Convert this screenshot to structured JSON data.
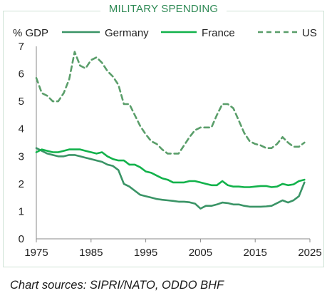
{
  "chart_data": {
    "type": "line",
    "title": "MILITARY SPENDING",
    "ylabel": "% GDP",
    "xlabel": "",
    "xlim": [
      1975,
      2025
    ],
    "ylim": [
      0,
      7
    ],
    "xticks": [
      "1975",
      "1985",
      "1995",
      "2005",
      "2015",
      "2025"
    ],
    "yticks": [
      "0",
      "1",
      "2",
      "3",
      "4",
      "5",
      "6",
      "7"
    ],
    "legend_position": "top",
    "grid": false,
    "series": [
      {
        "name": "Germany",
        "color": "#3a9466",
        "style": "solid",
        "x": [
          1975,
          1976,
          1977,
          1978,
          1979,
          1980,
          1981,
          1982,
          1983,
          1984,
          1985,
          1986,
          1987,
          1988,
          1989,
          1990,
          1991,
          1992,
          1993,
          1994,
          1995,
          1996,
          1997,
          1998,
          1999,
          2000,
          2001,
          2002,
          2003,
          2004,
          2005,
          2006,
          2007,
          2008,
          2009,
          2010,
          2011,
          2012,
          2013,
          2014,
          2015,
          2016,
          2017,
          2018,
          2019,
          2020,
          2021,
          2022,
          2023,
          2024
        ],
        "values": [
          3.3,
          3.2,
          3.1,
          3.05,
          3.0,
          3.0,
          3.05,
          3.05,
          3.0,
          2.95,
          2.9,
          2.85,
          2.8,
          2.7,
          2.65,
          2.5,
          2.0,
          1.9,
          1.75,
          1.6,
          1.55,
          1.5,
          1.45,
          1.42,
          1.4,
          1.38,
          1.35,
          1.35,
          1.33,
          1.28,
          1.1,
          1.2,
          1.2,
          1.25,
          1.32,
          1.3,
          1.25,
          1.25,
          1.2,
          1.17,
          1.17,
          1.17,
          1.18,
          1.2,
          1.3,
          1.4,
          1.32,
          1.4,
          1.55,
          2.05
        ]
      },
      {
        "name": "France",
        "color": "#12b24b",
        "style": "solid",
        "x": [
          1975,
          1976,
          1977,
          1978,
          1979,
          1980,
          1981,
          1982,
          1983,
          1984,
          1985,
          1986,
          1987,
          1988,
          1989,
          1990,
          1991,
          1992,
          1993,
          1994,
          1995,
          1996,
          1997,
          1998,
          1999,
          2000,
          2001,
          2002,
          2003,
          2004,
          2005,
          2006,
          2007,
          2008,
          2009,
          2010,
          2011,
          2012,
          2013,
          2014,
          2015,
          2016,
          2017,
          2018,
          2019,
          2020,
          2021,
          2022,
          2023,
          2024
        ],
        "values": [
          3.15,
          3.25,
          3.2,
          3.15,
          3.15,
          3.2,
          3.25,
          3.25,
          3.25,
          3.2,
          3.15,
          3.1,
          3.15,
          3.0,
          2.9,
          2.85,
          2.85,
          2.7,
          2.7,
          2.6,
          2.45,
          2.4,
          2.3,
          2.2,
          2.15,
          2.05,
          2.05,
          2.05,
          2.1,
          2.1,
          2.05,
          2.0,
          1.95,
          1.95,
          2.1,
          1.95,
          1.9,
          1.9,
          1.88,
          1.88,
          1.9,
          1.92,
          1.92,
          1.88,
          1.9,
          2.0,
          1.95,
          1.98,
          2.1,
          2.15
        ]
      },
      {
        "name": "US",
        "color": "#5a9e6a",
        "style": "dashed",
        "x": [
          1975,
          1976,
          1977,
          1978,
          1979,
          1980,
          1981,
          1982,
          1983,
          1984,
          1985,
          1986,
          1987,
          1988,
          1989,
          1990,
          1991,
          1992,
          1993,
          1994,
          1995,
          1996,
          1997,
          1998,
          1999,
          2000,
          2001,
          2002,
          2003,
          2004,
          2005,
          2006,
          2007,
          2008,
          2009,
          2010,
          2011,
          2012,
          2013,
          2014,
          2015,
          2016,
          2017,
          2018,
          2019,
          2020,
          2021,
          2022,
          2023,
          2024
        ],
        "values": [
          5.85,
          5.3,
          5.2,
          5.0,
          5.0,
          5.3,
          5.8,
          6.8,
          6.3,
          6.2,
          6.5,
          6.6,
          6.4,
          6.1,
          5.9,
          5.6,
          4.9,
          4.9,
          4.5,
          4.1,
          3.8,
          3.55,
          3.45,
          3.25,
          3.1,
          3.1,
          3.1,
          3.4,
          3.7,
          3.95,
          4.05,
          4.05,
          4.05,
          4.5,
          4.9,
          4.9,
          4.75,
          4.3,
          3.85,
          3.55,
          3.45,
          3.4,
          3.3,
          3.3,
          3.45,
          3.7,
          3.5,
          3.35,
          3.35,
          3.5
        ]
      }
    ]
  },
  "source_note": "Chart sources: SIPRI/NATO, ODDO BHF"
}
